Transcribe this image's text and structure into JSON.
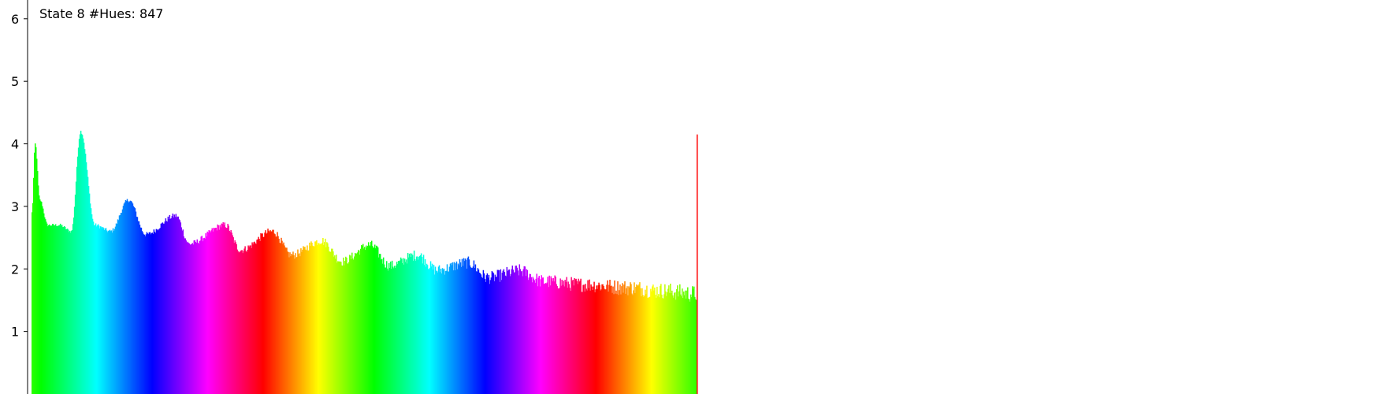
{
  "chart_data": {
    "type": "bar",
    "title": "State 8 #Hues: 847",
    "xlabel": "",
    "ylabel": "",
    "ylim": [
      0,
      6.3
    ],
    "yticks": [
      "1",
      "2",
      "3",
      "4",
      "5",
      "6"
    ],
    "grid": false,
    "hue_cycles": 2.0,
    "hue_start_deg": 110,
    "num_bars": 847,
    "last_bar_value": 4.15,
    "profile": [
      [
        0,
        2.9
      ],
      [
        4,
        4.0
      ],
      [
        10,
        3.1
      ],
      [
        20,
        2.7
      ],
      [
        35,
        2.7
      ],
      [
        50,
        2.6
      ],
      [
        62,
        4.2
      ],
      [
        80,
        2.7
      ],
      [
        100,
        2.6
      ],
      [
        123,
        3.1
      ],
      [
        145,
        2.55
      ],
      [
        183,
        2.85
      ],
      [
        200,
        2.4
      ],
      [
        246,
        2.7
      ],
      [
        265,
        2.3
      ],
      [
        306,
        2.6
      ],
      [
        330,
        2.22
      ],
      [
        368,
        2.45
      ],
      [
        395,
        2.12
      ],
      [
        430,
        2.38
      ],
      [
        455,
        2.05
      ],
      [
        490,
        2.22
      ],
      [
        515,
        1.98
      ],
      [
        555,
        2.1
      ],
      [
        580,
        1.86
      ],
      [
        620,
        1.97
      ],
      [
        650,
        1.8
      ],
      [
        700,
        1.75
      ],
      [
        760,
        1.7
      ],
      [
        800,
        1.65
      ],
      [
        846,
        1.6
      ]
    ]
  }
}
